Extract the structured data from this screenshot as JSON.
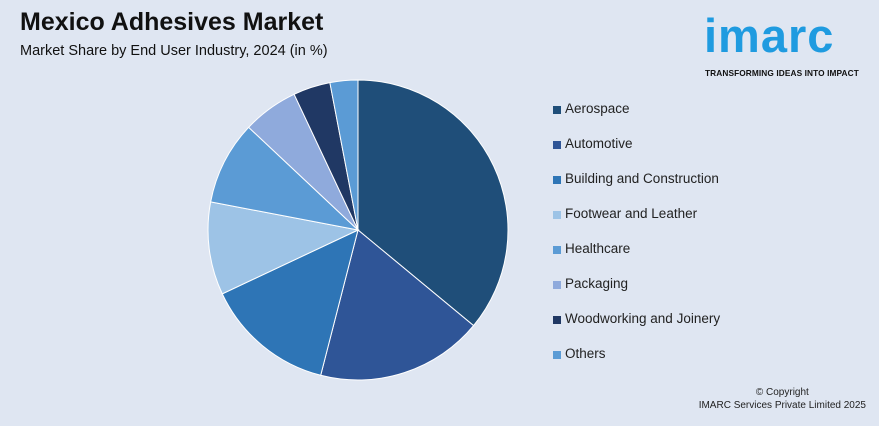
{
  "header": {
    "title": "Mexico Adhesives Market",
    "subtitle": "Market Share by End User Industry, 2024 (in %)"
  },
  "logo": {
    "wordmark": "imarc",
    "tagline": "TRANSFORMING IDEAS INTO IMPACT",
    "color": "#1f9be0"
  },
  "chart_data": {
    "type": "pie",
    "categories": [
      "Aerospace",
      "Automotive",
      "Building and Construction",
      "Footwear and Leather",
      "Healthcare",
      "Packaging",
      "Woodworking and Joinery",
      "Others"
    ],
    "values": [
      36,
      18,
      14,
      10,
      9,
      6,
      4,
      3
    ],
    "colors": [
      "#1f4e79",
      "#2f5597",
      "#2e75b6",
      "#9dc3e6",
      "#5b9bd5",
      "#8faadc",
      "#203864",
      "#5b9bd5"
    ],
    "legend_position": "right"
  },
  "footer": {
    "copyright_line1": "© Copyright",
    "copyright_line2": "IMARC Services Private Limited 2025"
  }
}
